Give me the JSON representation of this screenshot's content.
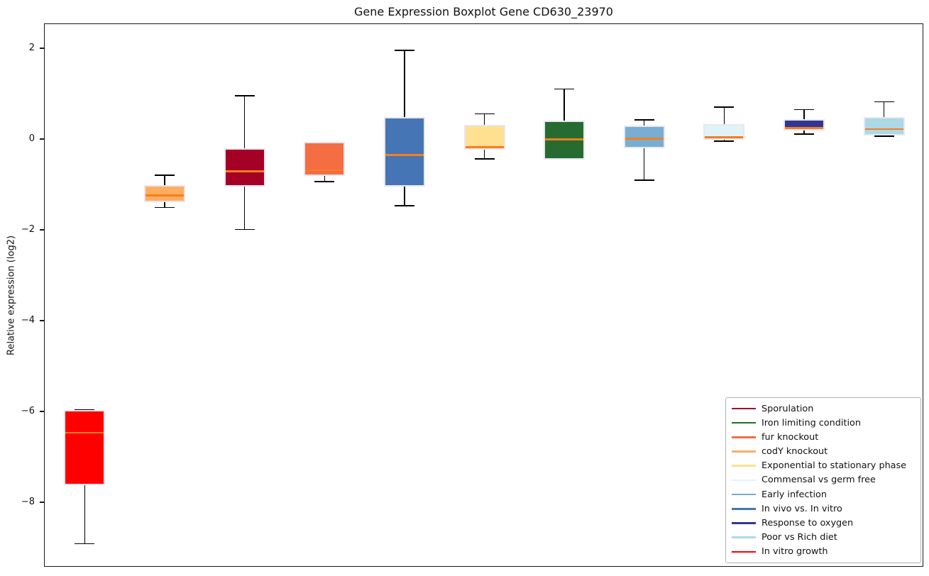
{
  "title": "Gene Expression Boxplot Gene CD630_23970",
  "chart_data": {
    "type": "boxplot",
    "title": "Gene Expression Boxplot Gene CD630_23970",
    "xlabel": "",
    "ylabel": "Relative expression (log2)",
    "ylim": [
      -9.42,
      2.55
    ],
    "yticks": [
      2,
      0,
      -2,
      -4,
      -6,
      -8
    ],
    "ytick_labels": [
      "2",
      "0",
      "−2",
      "−4",
      "−6",
      "−8"
    ],
    "grid": false,
    "legend_position": "lower right",
    "median_color": "#F87E1B",
    "box_edge_color": "#E9E6F0",
    "whisker_color": "#000000",
    "series": [
      {
        "name": "In vitro growth",
        "color": "#FF0000",
        "whisker_low": -8.9,
        "q1": -7.6,
        "median": -6.45,
        "q3": -5.95,
        "whisker_high": -5.95
      },
      {
        "name": "codY knockout",
        "color": "#FDAE61",
        "whisker_low": -1.49,
        "q1": -1.38,
        "median": -1.22,
        "q3": -1.0,
        "whisker_high": -0.78
      },
      {
        "name": "Sporulation",
        "color": "#A50026",
        "whisker_low": -1.97,
        "q1": -1.03,
        "median": -0.69,
        "q3": -0.18,
        "whisker_high": 0.97
      },
      {
        "name": "fur knockout",
        "color": "#F46D43",
        "whisker_low": -0.92,
        "q1": -0.79,
        "median": -0.67,
        "q3": -0.05,
        "whisker_high": -0.05
      },
      {
        "name": "In vivo vs. In vitro",
        "color": "#4575B4",
        "whisker_low": -1.45,
        "q1": -1.03,
        "median": -0.33,
        "q3": 0.51,
        "whisker_high": 1.97
      },
      {
        "name": "Exponential to stationary phase",
        "color": "#FEE090",
        "whisker_low": -0.42,
        "q1": -0.22,
        "median": -0.16,
        "q3": 0.33,
        "whisker_high": 0.57
      },
      {
        "name": "Iron limiting condition",
        "color": "#266C30",
        "whisker_low": -0.43,
        "q1": -0.43,
        "median": 0.01,
        "q3": 0.43,
        "whisker_high": 1.12
      },
      {
        "name": "Early infection",
        "color": "#78AED3",
        "whisker_low": -0.89,
        "q1": -0.18,
        "median": 0.03,
        "q3": 0.31,
        "whisker_high": 0.44
      },
      {
        "name": "Commensal vs germ free",
        "color": "#E0F3F8",
        "whisker_low": -0.03,
        "q1": 0.01,
        "median": 0.06,
        "q3": 0.35,
        "whisker_high": 0.72
      },
      {
        "name": "Response to oxygen",
        "color": "#313695",
        "whisker_low": 0.13,
        "q1": 0.2,
        "median": 0.26,
        "q3": 0.46,
        "whisker_high": 0.67
      },
      {
        "name": "Poor vs Rich diet",
        "color": "#ADD8E6",
        "whisker_low": 0.08,
        "q1": 0.1,
        "median": 0.24,
        "q3": 0.5,
        "whisker_high": 0.84
      }
    ],
    "legend": [
      {
        "label": "Sporulation",
        "color": "#A50026"
      },
      {
        "label": "Iron limiting condition",
        "color": "#266C30"
      },
      {
        "label": "fur knockout",
        "color": "#F46D43"
      },
      {
        "label": "codY knockout",
        "color": "#FDAE61"
      },
      {
        "label": "Exponential to stationary phase",
        "color": "#FEE090"
      },
      {
        "label": "Commensal vs germ free",
        "color": "#E0F3F8"
      },
      {
        "label": "Early infection",
        "color": "#78AED3"
      },
      {
        "label": "In vivo vs. In vitro",
        "color": "#4575B4"
      },
      {
        "label": "Response to oxygen",
        "color": "#313695"
      },
      {
        "label": "Poor vs Rich diet",
        "color": "#ADD8E6"
      },
      {
        "label": "In vitro growth",
        "color": "#FF0000"
      }
    ]
  }
}
